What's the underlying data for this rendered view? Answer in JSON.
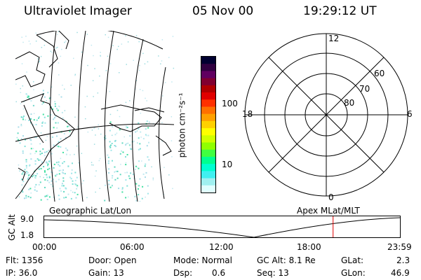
{
  "header": {
    "title": "Ultraviolet Imager",
    "date": "05 Nov 00",
    "time": "19:29:12 UT"
  },
  "colorbar": {
    "unit_label": "photon cm⁻²s⁻¹",
    "ticks": [
      "100",
      "10"
    ],
    "colors": [
      "#000030",
      "#300040",
      "#600060",
      "#800030",
      "#b00000",
      "#e00000",
      "#ff3000",
      "#ff7000",
      "#ffa000",
      "#ffd000",
      "#ffff00",
      "#d0ff00",
      "#90ff00",
      "#40ff40",
      "#00ff90",
      "#00ffd0",
      "#40f0f0",
      "#a0f0f0",
      "#e0ffff"
    ]
  },
  "polar_plot": {
    "mlt_labels": {
      "top": "12",
      "left": "18",
      "right": "6",
      "bottom": "0"
    },
    "lat_labels": [
      "60",
      "70",
      "80"
    ]
  },
  "geo_label": "Geographic Lat/Lon",
  "apex_label": "Apex MLat/MLT",
  "altitude_plot": {
    "axis_title": "GC Alt",
    "y_ticks": [
      "9.0",
      "1.8"
    ],
    "x_ticks": [
      "00:00",
      "06:00",
      "12:00",
      "18:00",
      "23:59"
    ],
    "marker_time_hours": 19.49,
    "marker_color": "#e00000"
  },
  "info": {
    "flt": "Flt: 1356",
    "ip": "IP: 36.0",
    "door": "Door: Open",
    "gain": "Gain: 13",
    "mode": "Mode: Normal",
    "dsp_label": "Dsp:",
    "dsp_value": "0.6",
    "gcalt": "GC Alt: 8.1 Re",
    "seq": "Seq: 13",
    "glat_label": "GLat:",
    "glat_value": "2.3",
    "glon_label": "GLon:",
    "glon_value": "46.9"
  }
}
